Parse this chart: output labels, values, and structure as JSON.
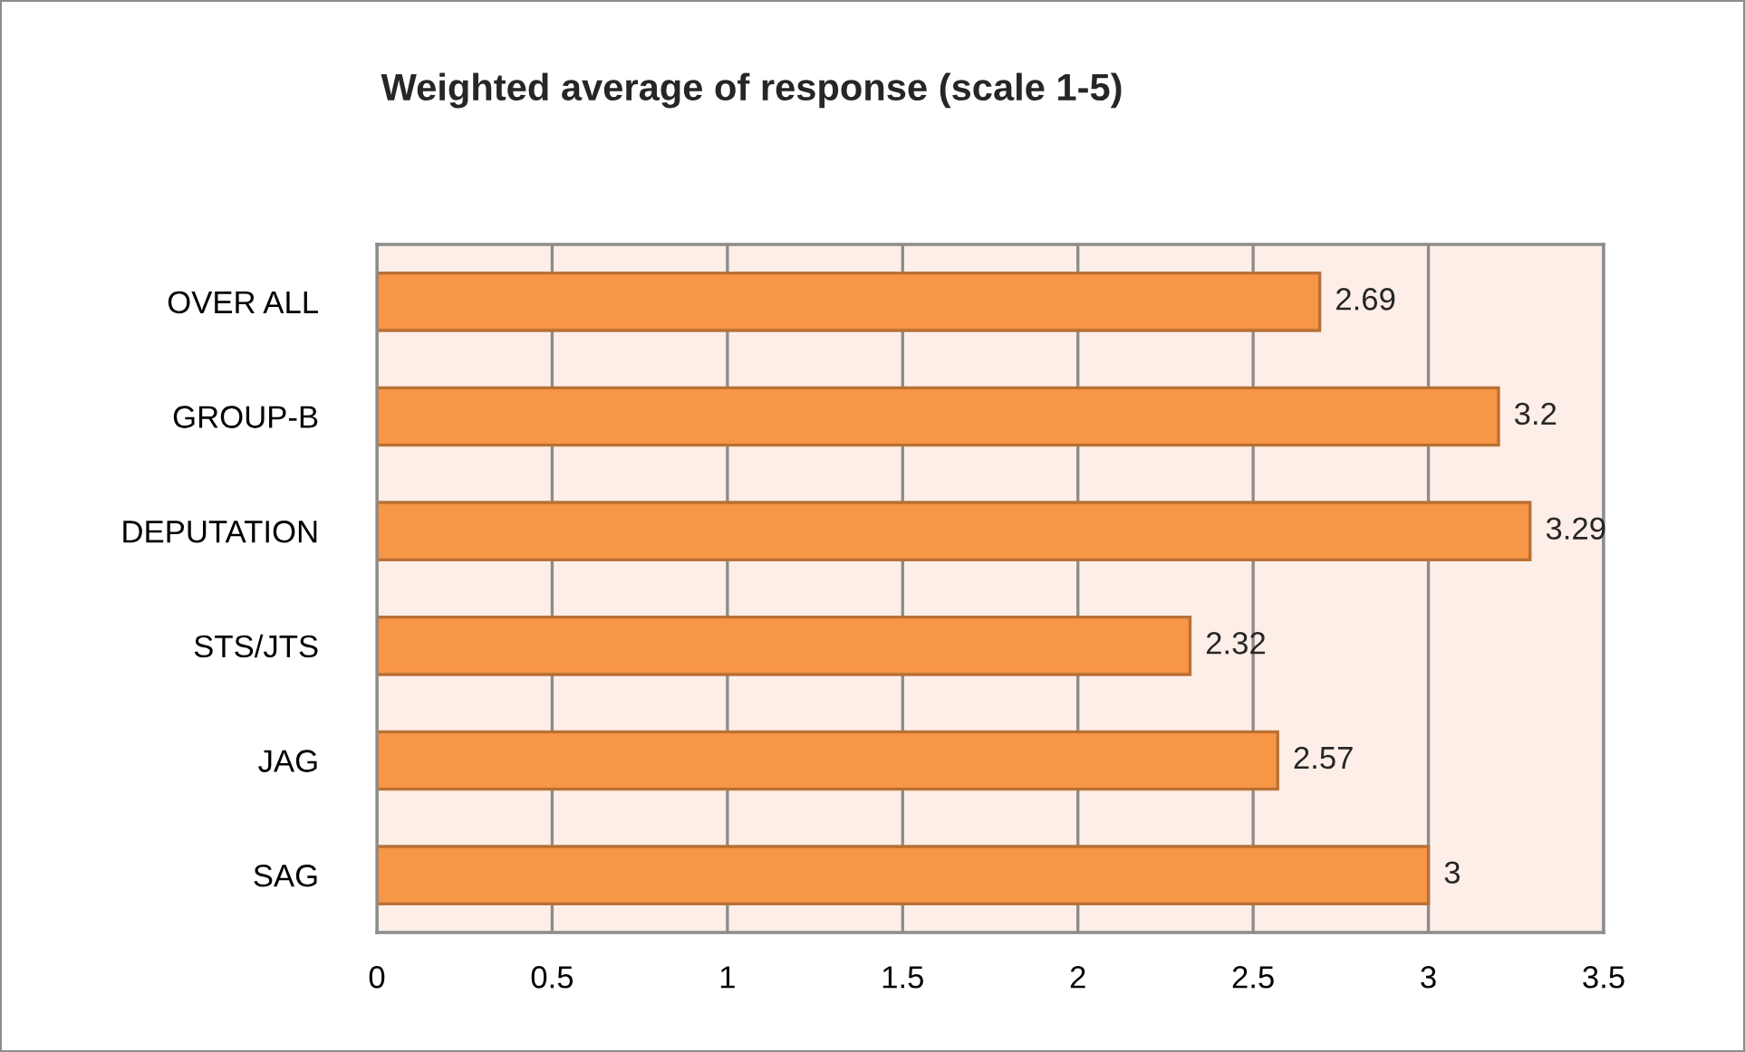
{
  "chart_data": {
    "type": "bar",
    "orientation": "horizontal",
    "title": "Weighted average of response (scale 1-5)",
    "categories": [
      "OVER ALL",
      "GROUP-B",
      "DEPUTATION",
      "STS/JTS",
      "JAG",
      "SAG"
    ],
    "values": [
      2.69,
      3.2,
      3.29,
      2.32,
      2.57,
      3
    ],
    "color": "#f79646",
    "xlim": [
      0,
      3.5
    ],
    "xticks": [
      0,
      0.5,
      1,
      1.5,
      2,
      2.5,
      3,
      3.5
    ],
    "grid": "x",
    "data_labels": true
  }
}
